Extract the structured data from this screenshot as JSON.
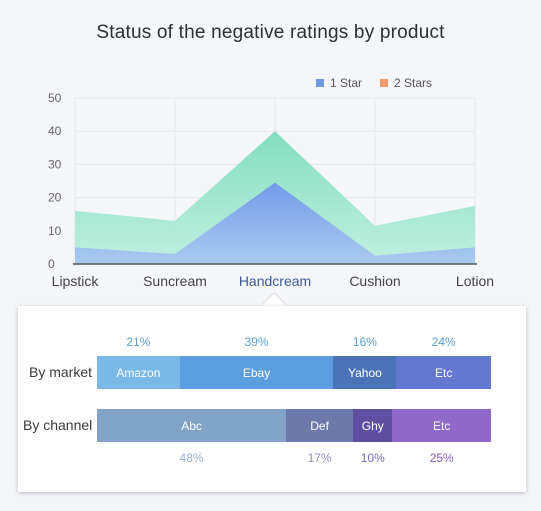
{
  "title": "Status of the negative ratings by product",
  "legend": [
    {
      "label": "1 Star",
      "color": "#6f9ae6"
    },
    {
      "label": "2 Stars",
      "color": "#f29b72"
    }
  ],
  "chart_data": [
    {
      "type": "area",
      "title": "Status of the negative ratings by product",
      "categories": [
        "Lipstick",
        "Suncream",
        "Handcream",
        "Cushion",
        "Lotion"
      ],
      "highlighted_category": "Handcream",
      "series": [
        {
          "name": "1 Star",
          "values": [
            5,
            3,
            24.5,
            2.5,
            5
          ],
          "color": "#7da3ec"
        },
        {
          "name": "2 Stars",
          "values": [
            16,
            13,
            40,
            11.5,
            17.5
          ],
          "color": "#88e0c4"
        }
      ],
      "ylim": [
        0,
        50
      ],
      "yticks": [
        0,
        10,
        20,
        30,
        40,
        50
      ],
      "grid": true,
      "legend_position": "top-right"
    },
    {
      "type": "bar",
      "stacked": true,
      "orientation": "horizontal",
      "rows": [
        {
          "label": "By market",
          "segments": [
            {
              "name": "Amazon",
              "value": 21,
              "pct_label": "21%",
              "color": "#7ab9e6",
              "pct_color": "#5a9fd4"
            },
            {
              "name": "Ebay",
              "value": 39,
              "pct_label": "39%",
              "color": "#5b9ee0",
              "pct_color": "#5a9fd4"
            },
            {
              "name": "Yahoo",
              "value": 16,
              "pct_label": "16%",
              "color": "#4a73b8",
              "pct_color": "#5a9fd4"
            },
            {
              "name": "Etc",
              "value": 24,
              "pct_label": "24%",
              "color": "#6478d0",
              "pct_color": "#5a9fd4"
            }
          ]
        },
        {
          "label": "By channel",
          "segments": [
            {
              "name": "Abc",
              "value": 48,
              "pct_label": "48%",
              "color": "#82a3c8",
              "pct_color": "#9bb0cf"
            },
            {
              "name": "Def",
              "value": 17,
              "pct_label": "17%",
              "color": "#6c79aa",
              "pct_color": "#8d8fbb"
            },
            {
              "name": "Ghy",
              "value": 10,
              "pct_label": "10%",
              "color": "#5f4fa0",
              "pct_color": "#7c6cb3"
            },
            {
              "name": "Etc",
              "value": 25,
              "pct_label": "25%",
              "color": "#9068c8",
              "pct_color": "#8858c0"
            }
          ]
        }
      ]
    }
  ]
}
